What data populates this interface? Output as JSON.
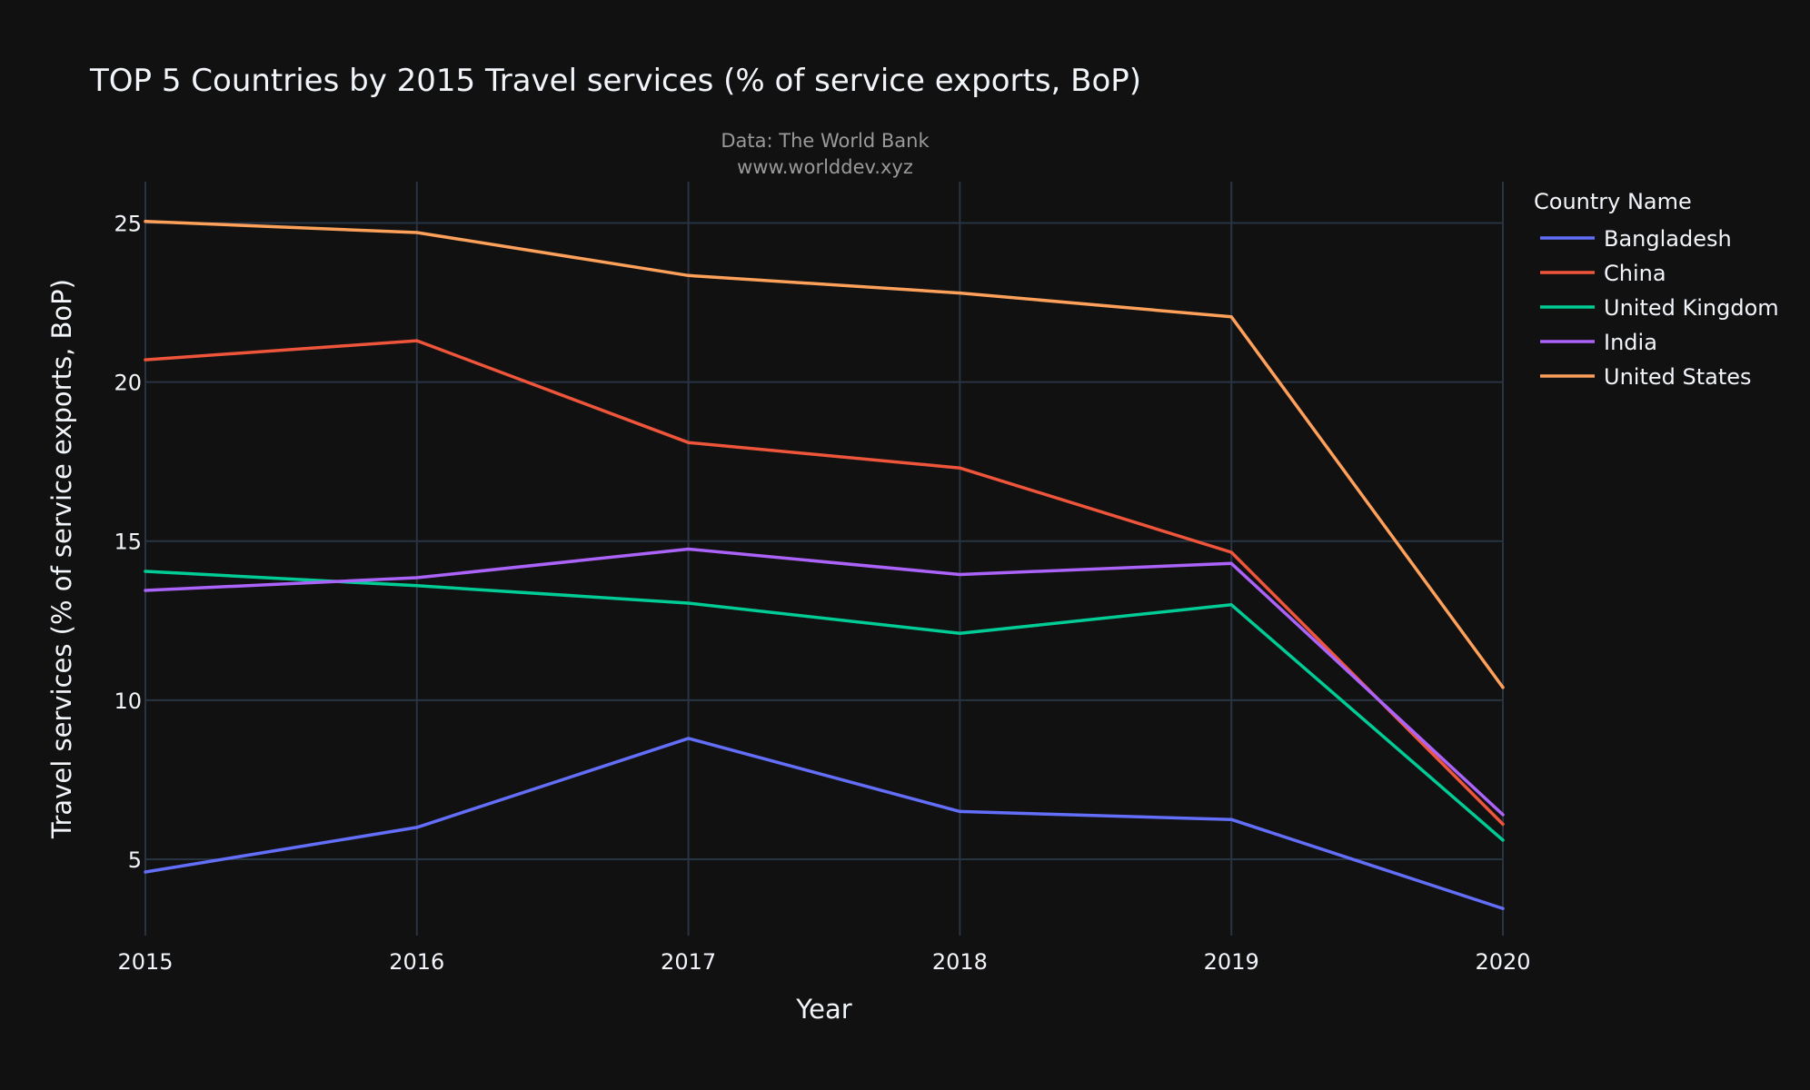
{
  "chart_data": {
    "type": "line",
    "title": "TOP 5 Countries by 2015 Travel services (% of service exports, BoP)",
    "source_lines": [
      "Data: The World Bank",
      "www.worlddev.xyz"
    ],
    "xlabel": "Year",
    "ylabel": "Travel services (% of service exports, BoP)",
    "x": [
      2015,
      2016,
      2017,
      2018,
      2019,
      2020
    ],
    "x_ticks": [
      "2015",
      "2016",
      "2017",
      "2018",
      "2019",
      "2020"
    ],
    "xlim": [
      2015,
      2020
    ],
    "y_ticks": [
      5,
      10,
      15,
      20,
      25
    ],
    "ylim": [
      2.6,
      26.3
    ],
    "grid": true,
    "legend_title": "Country Name",
    "legend_position": "right",
    "series": [
      {
        "name": "Bangladesh",
        "color": "#636efa",
        "values": [
          4.6,
          6.0,
          8.8,
          6.5,
          6.25,
          3.45
        ]
      },
      {
        "name": "China",
        "color": "#ef553b",
        "values": [
          20.7,
          21.3,
          18.1,
          17.3,
          14.65,
          6.1
        ]
      },
      {
        "name": "United Kingdom",
        "color": "#00cc96",
        "values": [
          14.05,
          13.6,
          13.05,
          12.1,
          13.0,
          5.6
        ]
      },
      {
        "name": "India",
        "color": "#ab63fa",
        "values": [
          13.45,
          13.85,
          14.75,
          13.95,
          14.3,
          6.4
        ]
      },
      {
        "name": "United States",
        "color": "#ffa15a",
        "values": [
          25.05,
          24.7,
          23.35,
          22.8,
          22.05,
          10.4
        ]
      }
    ]
  }
}
